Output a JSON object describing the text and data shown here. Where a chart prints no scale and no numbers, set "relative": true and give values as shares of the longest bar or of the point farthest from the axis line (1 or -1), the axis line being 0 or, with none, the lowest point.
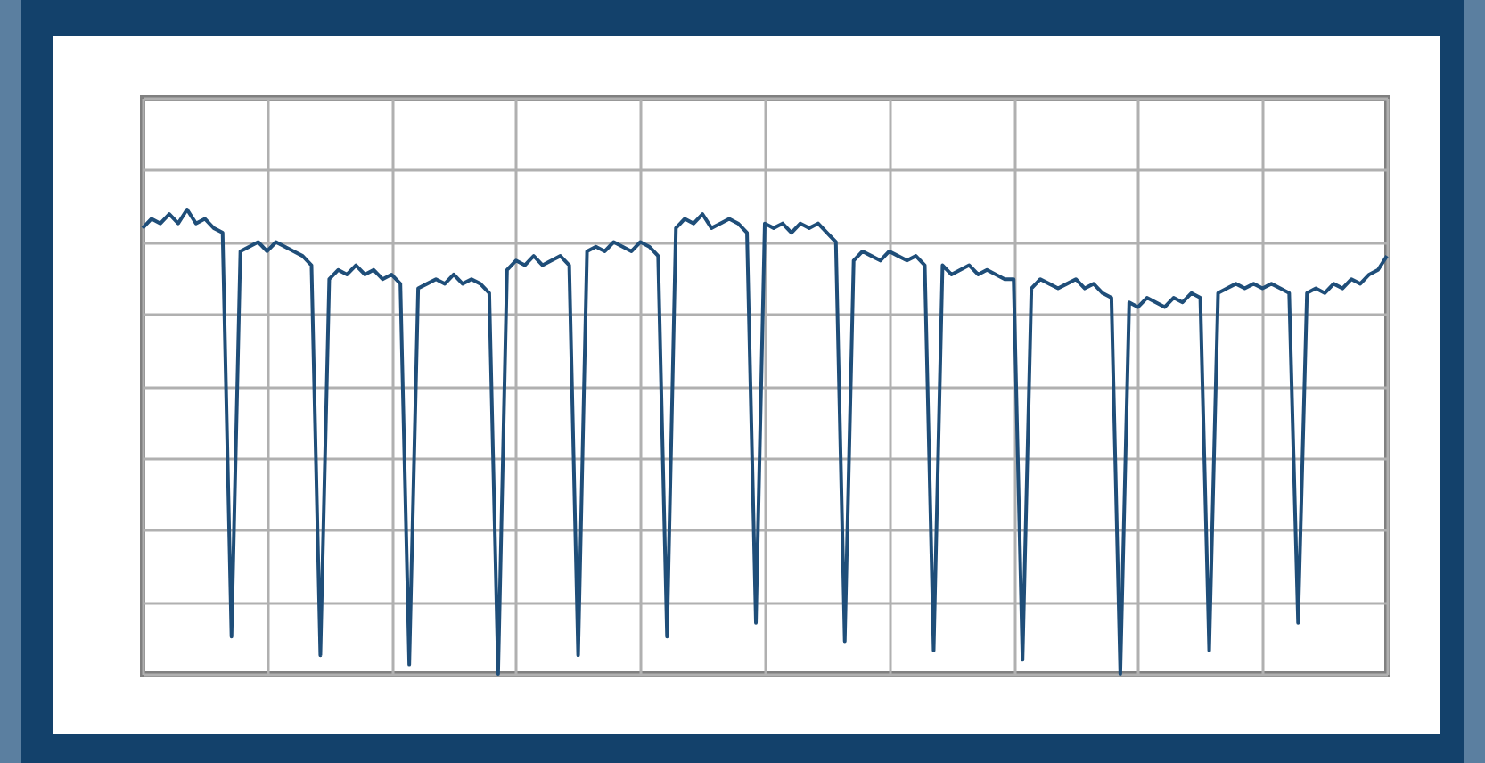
{
  "chart_data": {
    "type": "line",
    "relative": true,
    "grid": true,
    "tick_labels": false,
    "marker": "none",
    "line_style": "solid",
    "categories": [
      null,
      null,
      null,
      null,
      null,
      null,
      null,
      null,
      null,
      null,
      null,
      null,
      null,
      null,
      null,
      null,
      null,
      null,
      null,
      null,
      null,
      null,
      null,
      null,
      null,
      null,
      null,
      null,
      null,
      null,
      null,
      null,
      null,
      null,
      null,
      null,
      null,
      null,
      null,
      null,
      null,
      null,
      null,
      null,
      null,
      null,
      null,
      null,
      null,
      null,
      null,
      null,
      null,
      null,
      null,
      null,
      null,
      null,
      null,
      null,
      null,
      null,
      null,
      null,
      null,
      null,
      null,
      null,
      null,
      null,
      null,
      null,
      null,
      null,
      null,
      null,
      null,
      null,
      null,
      null,
      null,
      null,
      null,
      null,
      null,
      null,
      null,
      null,
      null,
      null,
      null,
      null,
      null,
      null,
      null,
      null,
      null,
      null,
      null,
      null,
      null,
      null,
      null,
      null,
      null,
      null,
      null,
      null,
      null,
      null,
      null,
      null,
      null,
      null,
      null,
      null,
      null,
      null,
      null,
      null,
      null,
      null,
      null,
      null,
      null,
      null,
      null,
      null,
      null,
      null,
      null,
      null,
      null,
      null,
      null,
      null,
      null,
      null,
      null,
      null,
      null
    ],
    "series": [
      {
        "color": "#1f4e79",
        "values": [
          0.96,
          0.98,
          0.97,
          0.99,
          0.97,
          1,
          0.97,
          0.98,
          0.96,
          0.95,
          0.08,
          0.91,
          0.92,
          0.93,
          0.91,
          0.93,
          0.92,
          0.91,
          0.9,
          0.88,
          0.04,
          0.85,
          0.87,
          0.86,
          0.88,
          0.86,
          0.87,
          0.85,
          0.86,
          0.84,
          0.02,
          0.83,
          0.84,
          0.85,
          0.84,
          0.86,
          0.84,
          0.85,
          0.84,
          0.82,
          0,
          0.87,
          0.89,
          0.88,
          0.9,
          0.88,
          0.89,
          0.9,
          0.88,
          0.04,
          0.91,
          0.92,
          0.91,
          0.93,
          0.92,
          0.91,
          0.93,
          0.92,
          0.9,
          0.08,
          0.96,
          0.98,
          0.97,
          0.99,
          0.96,
          0.97,
          0.98,
          0.97,
          0.95,
          0.11,
          0.97,
          0.96,
          0.97,
          0.95,
          0.97,
          0.96,
          0.97,
          0.95,
          0.93,
          0.07,
          0.89,
          0.91,
          0.9,
          0.89,
          0.91,
          0.9,
          0.89,
          0.9,
          0.88,
          0.05,
          0.88,
          0.86,
          0.87,
          0.88,
          0.86,
          0.87,
          0.86,
          0.85,
          0.85,
          0.03,
          0.83,
          0.85,
          0.84,
          0.83,
          0.84,
          0.85,
          0.83,
          0.84,
          0.82,
          0.81,
          0,
          0.8,
          0.79,
          0.81,
          0.8,
          0.79,
          0.81,
          0.8,
          0.82,
          0.81,
          0.05,
          0.82,
          0.83,
          0.84,
          0.83,
          0.84,
          0.83,
          0.84,
          0.83,
          0.82,
          0.11,
          0.82,
          0.83,
          0.82,
          0.84,
          0.83,
          0.85,
          0.84,
          0.86,
          0.87,
          0.9
        ]
      }
    ]
  }
}
